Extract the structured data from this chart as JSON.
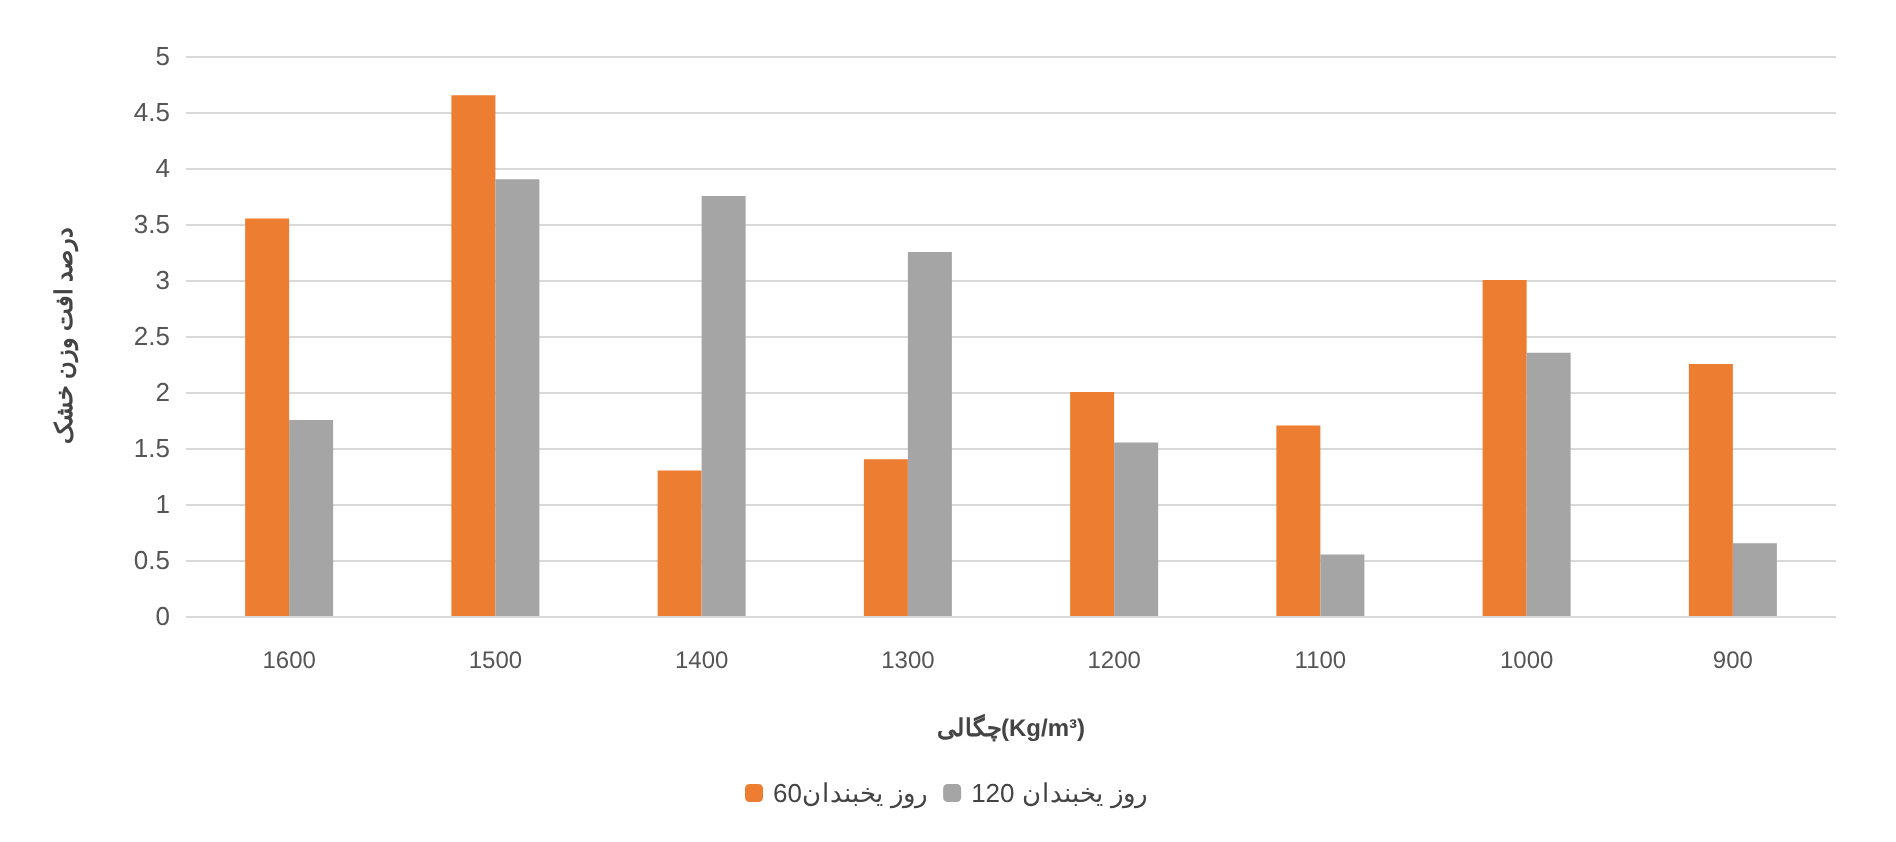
{
  "chart_data": {
    "type": "bar",
    "xlabel": "چگالی(Kg/m³)",
    "ylabel": "درصد افت وزن خشک",
    "categories": [
      "1600",
      "1500",
      "1400",
      "1300",
      "1200",
      "1100",
      "1000",
      "900"
    ],
    "series": [
      {
        "name": "60روز یخبندان",
        "color": "#ed7d31",
        "values": [
          3.55,
          4.65,
          1.3,
          1.4,
          2.0,
          1.7,
          3.0,
          2.25
        ]
      },
      {
        "name": "120 روز یخبندان",
        "color": "#a5a5a5",
        "values": [
          1.75,
          3.9,
          3.75,
          3.25,
          1.55,
          0.55,
          2.35,
          0.65
        ]
      }
    ],
    "ylim": [
      0,
      5
    ],
    "yticks": [
      0,
      0.5,
      1,
      1.5,
      2,
      2.5,
      3,
      3.5,
      4,
      4.5,
      5
    ],
    "grid": "y",
    "legend": "bottom"
  }
}
